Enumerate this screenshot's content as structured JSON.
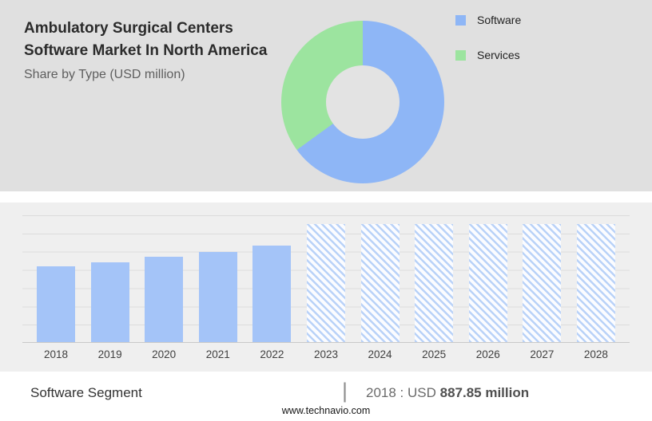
{
  "header": {
    "title": "Ambulatory Surgical Centers Software Market In North America",
    "subtitle": "Share by Type (USD million)"
  },
  "colors": {
    "software_blue": "#8eb6f6",
    "services_green": "#9ce49f",
    "bar_blue": "#a4c4f8",
    "hatch_blue": "#b9d2f8",
    "panel_gray": "#e0e0e0"
  },
  "chart_data": [
    {
      "type": "pie",
      "title": "Share by Type (USD million)",
      "labels": [
        "Software",
        "Services"
      ],
      "values": [
        65,
        35
      ],
      "colors": [
        "#8eb6f6",
        "#9ce49f"
      ],
      "donut": true,
      "hole_ratio": 0.45,
      "legend_position": "top-right"
    },
    {
      "type": "bar",
      "title": "Ambulatory Surgical Centers Software Market In North America (USD million)",
      "categories": [
        "2018",
        "2019",
        "2020",
        "2021",
        "2022",
        "2023",
        "2024",
        "2025",
        "2026",
        "2027",
        "2028"
      ],
      "values": [
        887.85,
        941,
        1003,
        1064,
        1131,
        null,
        null,
        null,
        null,
        null,
        null
      ],
      "forecast_categories": [
        "2023",
        "2024",
        "2025",
        "2026",
        "2027",
        "2028"
      ],
      "forecast_display_value": 1390,
      "xlabel": "",
      "ylabel": "",
      "ylim": [
        0,
        1500
      ],
      "grid": true,
      "bar_color": "#a4c4f8",
      "forecast_pattern": "diagonal-hatch"
    }
  ],
  "footer": {
    "segment_label": "Software Segment",
    "separator": "|",
    "stat_prefix": "2018 : USD",
    "stat_value": "887.85 million",
    "website": "www.technavio.com"
  }
}
